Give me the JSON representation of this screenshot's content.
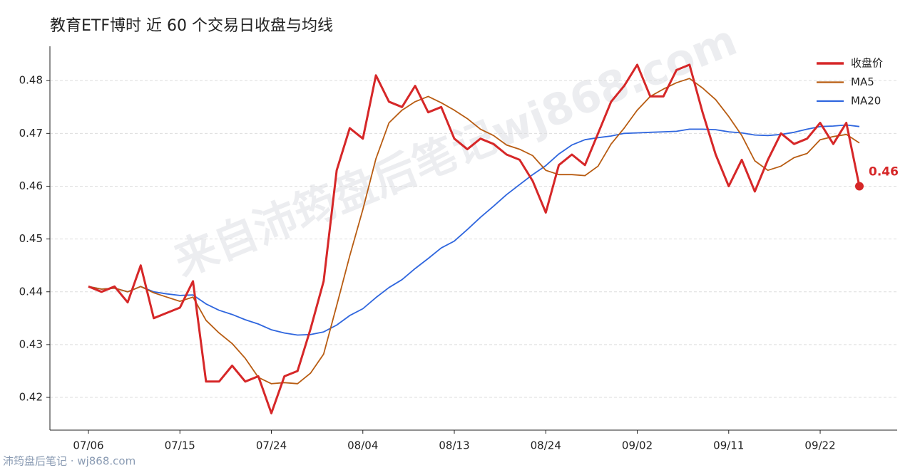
{
  "chart_data": {
    "type": "line",
    "title": "教育ETF博时 近 60 个交易日收盘与均线",
    "watermark": "来自沛筠盘后笔记wj868.com",
    "footer": "沛筠盘后笔记 · wj868.com",
    "categories": [
      "07/06",
      null,
      null,
      null,
      null,
      null,
      null,
      "07/15",
      null,
      null,
      null,
      null,
      null,
      null,
      "07/24",
      null,
      null,
      null,
      null,
      null,
      null,
      "08/04",
      null,
      null,
      null,
      null,
      null,
      null,
      "08/13",
      null,
      null,
      null,
      null,
      null,
      null,
      "08/24",
      null,
      null,
      null,
      null,
      null,
      null,
      "09/02",
      null,
      null,
      null,
      null,
      null,
      null,
      "09/11",
      null,
      null,
      null,
      null,
      null,
      null,
      "09/22",
      null,
      null,
      null
    ],
    "series": [
      {
        "name": "收盘价",
        "color": "#d62728",
        "width": 3,
        "values": [
          0.441,
          0.44,
          0.441,
          0.438,
          0.445,
          0.435,
          0.436,
          0.437,
          0.442,
          0.423,
          0.423,
          0.426,
          0.423,
          0.424,
          0.417,
          0.424,
          0.425,
          0.433,
          0.442,
          0.463,
          0.471,
          0.469,
          0.481,
          0.476,
          0.475,
          0.479,
          0.474,
          0.475,
          0.469,
          0.467,
          0.469,
          0.468,
          0.466,
          0.465,
          0.461,
          0.455,
          0.464,
          0.466,
          0.464,
          0.47,
          0.476,
          0.479,
          0.483,
          0.477,
          0.477,
          0.482,
          0.483,
          0.474,
          0.466,
          0.46,
          0.465,
          0.459,
          0.465,
          0.47,
          0.468,
          0.469,
          0.472,
          0.468,
          0.472,
          0.46
        ],
        "value_labels": [
          null,
          null,
          null,
          null,
          null,
          null,
          null,
          null,
          null,
          null,
          null,
          null,
          null,
          null,
          null,
          null,
          null,
          null,
          null,
          null,
          null,
          null,
          null,
          null,
          null,
          null,
          null,
          null,
          null,
          null,
          null,
          null,
          null,
          null,
          null,
          null,
          null,
          null,
          null,
          null,
          null,
          null,
          null,
          null,
          null,
          null,
          null,
          null,
          null,
          null,
          null,
          null,
          null,
          null,
          null,
          null,
          null,
          null,
          null,
          "0.46"
        ]
      },
      {
        "name": "MA5",
        "color": "#b85c12",
        "width": 1.8,
        "values": [
          0.441,
          0.4405,
          0.4407,
          0.44,
          0.441,
          0.4398,
          0.439,
          0.4382,
          0.439,
          0.4346,
          0.4322,
          0.4302,
          0.4274,
          0.4238,
          0.4226,
          0.4228,
          0.4226,
          0.4246,
          0.4282,
          0.4374,
          0.4468,
          0.4556,
          0.4652,
          0.472,
          0.4744,
          0.476,
          0.477,
          0.4758,
          0.4744,
          0.4728,
          0.4708,
          0.4696,
          0.4678,
          0.467,
          0.4658,
          0.463,
          0.4622,
          0.4622,
          0.462,
          0.4638,
          0.468,
          0.471,
          0.4744,
          0.477,
          0.4784,
          0.4796,
          0.4804,
          0.4786,
          0.4764,
          0.4732,
          0.4696,
          0.4648,
          0.463,
          0.4638,
          0.4654,
          0.4662,
          0.4688,
          0.4694,
          0.4698,
          0.4682
        ]
      },
      {
        "name": "MA20",
        "color": "#2f66de",
        "width": 1.8,
        "values": [
          0.441,
          0.4405,
          0.4407,
          0.44,
          0.441,
          0.44,
          0.4396,
          0.4393,
          0.4394,
          0.4377,
          0.4365,
          0.4357,
          0.4347,
          0.4339,
          0.4328,
          0.4322,
          0.4318,
          0.4319,
          0.4324,
          0.4337,
          0.4355,
          0.4368,
          0.4389,
          0.4408,
          0.4423,
          0.4444,
          0.4463,
          0.4483,
          0.4496,
          0.4518,
          0.4541,
          0.4562,
          0.4584,
          0.4603,
          0.4622,
          0.4639,
          0.4661,
          0.4678,
          0.4688,
          0.4692,
          0.4695,
          0.47,
          0.4701,
          0.4702,
          0.4703,
          0.4704,
          0.4708,
          0.4708,
          0.4707,
          0.4703,
          0.4701,
          0.4697,
          0.4696,
          0.4698,
          0.4702,
          0.4708,
          0.4713,
          0.4714,
          0.4716,
          0.4713
        ]
      }
    ],
    "ylim": [
      0.4138,
      0.4865
    ],
    "yticks": [
      0.42,
      0.43,
      0.44,
      0.45,
      0.46,
      0.47,
      0.48
    ],
    "grid": true,
    "legend": "upper right"
  }
}
